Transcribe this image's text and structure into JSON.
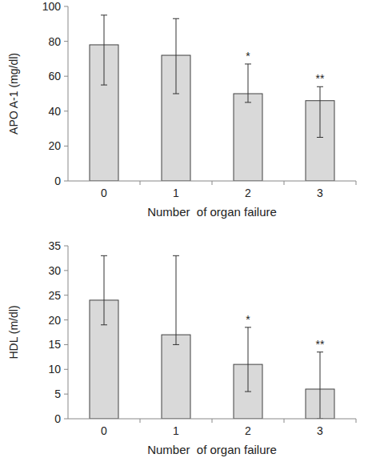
{
  "chart_data": [
    {
      "type": "bar",
      "categories": [
        "0",
        "1",
        "2",
        "3"
      ],
      "values": [
        78,
        72,
        50,
        46
      ],
      "lower": [
        55,
        50,
        45,
        25
      ],
      "upper": [
        95,
        93,
        67,
        54
      ],
      "annotations": [
        null,
        null,
        "*",
        "**"
      ],
      "y_label": "APO A-1 (mg/dl)",
      "x_label": "Number  of organ failure",
      "color": "#d9d9d9",
      "ylim": [
        0,
        100
      ],
      "yticks": [
        0,
        20,
        40,
        60,
        80,
        100
      ],
      "grid": false
    },
    {
      "type": "bar",
      "categories": [
        "0",
        "1",
        "2",
        "3"
      ],
      "values": [
        24,
        17,
        11,
        6
      ],
      "lower": [
        19,
        15,
        5.5,
        0
      ],
      "upper": [
        33,
        33,
        18.5,
        13.5
      ],
      "annotations": [
        null,
        null,
        "*",
        "**"
      ],
      "y_label": "HDL (m/dl)",
      "x_label": "Number  of organ failure",
      "color": "#d9d9d9",
      "ylim": [
        0,
        35
      ],
      "yticks": [
        0,
        5,
        10,
        15,
        20,
        25,
        30,
        35
      ],
      "grid": false
    }
  ]
}
